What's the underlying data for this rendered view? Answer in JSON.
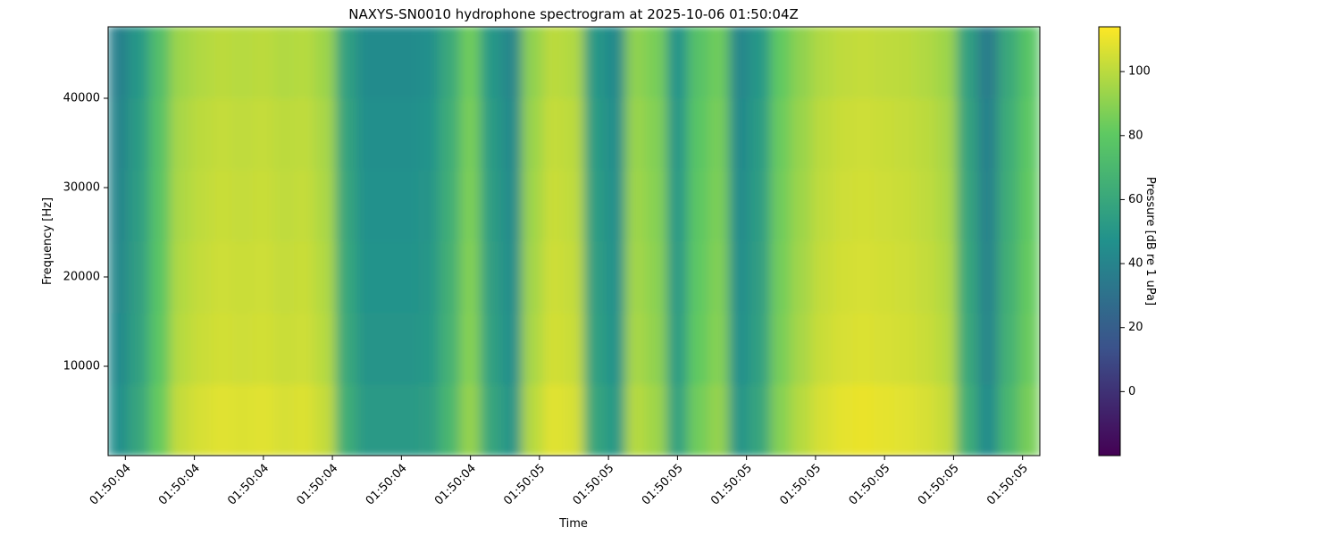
{
  "chart_data": {
    "type": "heatmap",
    "title": "NAXYS-SN0010 hydrophone spectrogram at 2025-10-06 01:50:04Z",
    "x_label": "Time",
    "y_label": "Frequency [Hz]",
    "colorbar_label": "Pressure [dB re 1 uPa]",
    "colormap": "viridis",
    "x": [
      4.39,
      4.42,
      4.45,
      4.48,
      4.51,
      4.54,
      4.57,
      4.6,
      4.63,
      4.66,
      4.69,
      4.72,
      4.75,
      4.78,
      4.81,
      4.84,
      4.87,
      4.9,
      4.93,
      4.96,
      4.99,
      5.02,
      5.05,
      5.08,
      5.11,
      5.14,
      5.17,
      5.2,
      5.23,
      5.26,
      5.29,
      5.32,
      5.35,
      5.38,
      5.41,
      5.44,
      5.47,
      5.5,
      5.53,
      5.56,
      5.59,
      5.62,
      5.65,
      5.68,
      5.71
    ],
    "y": [
      4000,
      12000,
      20000,
      28000,
      36000,
      44000
    ],
    "values": [
      [
        46,
        59,
        82,
        102,
        106,
        108,
        107,
        108,
        106,
        107,
        102,
        64,
        52,
        52,
        52,
        54,
        69,
        92,
        59,
        49,
        99,
        108,
        106,
        59,
        51,
        99,
        94,
        56,
        84,
        92,
        49,
        59,
        89,
        99,
        106,
        109,
        110,
        109,
        108,
        106,
        102,
        64,
        44,
        69,
        86
      ],
      [
        43,
        56,
        79,
        99,
        103,
        105,
        104,
        105,
        103,
        104,
        99,
        61,
        49,
        49,
        49,
        51,
        66,
        89,
        56,
        46,
        96,
        105,
        103,
        56,
        48,
        96,
        91,
        53,
        81,
        89,
        46,
        56,
        86,
        96,
        103,
        106,
        107,
        106,
        105,
        103,
        99,
        61,
        41,
        66,
        83
      ],
      [
        42,
        55,
        78,
        98,
        102,
        104,
        103,
        104,
        102,
        103,
        98,
        60,
        48,
        48,
        48,
        50,
        65,
        88,
        55,
        45,
        95,
        104,
        102,
        55,
        47,
        95,
        90,
        52,
        80,
        88,
        45,
        55,
        85,
        95,
        102,
        105,
        106,
        105,
        104,
        102,
        98,
        60,
        40,
        65,
        82
      ],
      [
        41,
        54,
        77,
        97,
        101,
        103,
        102,
        103,
        101,
        102,
        97,
        59,
        47,
        47,
        47,
        49,
        64,
        87,
        54,
        44,
        94,
        103,
        101,
        54,
        46,
        94,
        89,
        51,
        79,
        87,
        44,
        54,
        84,
        94,
        101,
        104,
        105,
        104,
        103,
        101,
        97,
        59,
        39,
        64,
        81
      ],
      [
        40,
        53,
        76,
        96,
        100,
        102,
        101,
        102,
        100,
        101,
        96,
        58,
        46,
        46,
        46,
        48,
        63,
        86,
        53,
        43,
        93,
        102,
        100,
        53,
        45,
        93,
        88,
        50,
        78,
        86,
        43,
        53,
        83,
        93,
        100,
        103,
        104,
        103,
        102,
        100,
        96,
        58,
        38,
        63,
        80
      ],
      [
        38,
        51,
        74,
        94,
        98,
        100,
        99,
        100,
        98,
        99,
        94,
        56,
        44,
        44,
        44,
        46,
        61,
        84,
        51,
        41,
        91,
        100,
        98,
        51,
        43,
        91,
        86,
        48,
        76,
        84,
        41,
        51,
        81,
        91,
        98,
        101,
        102,
        101,
        100,
        98,
        94,
        56,
        36,
        61,
        78
      ]
    ],
    "xlim": [
      4.375,
      5.725
    ],
    "xticks": [
      {
        "value": 4.4,
        "label": "01:50:04"
      },
      {
        "value": 4.5,
        "label": "01:50:04"
      },
      {
        "value": 4.6,
        "label": "01:50:04"
      },
      {
        "value": 4.7,
        "label": "01:50:04"
      },
      {
        "value": 4.8,
        "label": "01:50:04"
      },
      {
        "value": 4.9,
        "label": "01:50:04"
      },
      {
        "value": 5.0,
        "label": "01:50:05"
      },
      {
        "value": 5.1,
        "label": "01:50:05"
      },
      {
        "value": 5.2,
        "label": "01:50:05"
      },
      {
        "value": 5.3,
        "label": "01:50:05"
      },
      {
        "value": 5.4,
        "label": "01:50:05"
      },
      {
        "value": 5.5,
        "label": "01:50:05"
      },
      {
        "value": 5.6,
        "label": "01:50:05"
      },
      {
        "value": 5.7,
        "label": "01:50:05"
      }
    ],
    "ylim": [
      0,
      48000
    ],
    "yticks": [
      10000,
      20000,
      30000,
      40000
    ],
    "clim": [
      -20,
      114
    ],
    "cticks": [
      0,
      20,
      40,
      60,
      80,
      100
    ]
  }
}
